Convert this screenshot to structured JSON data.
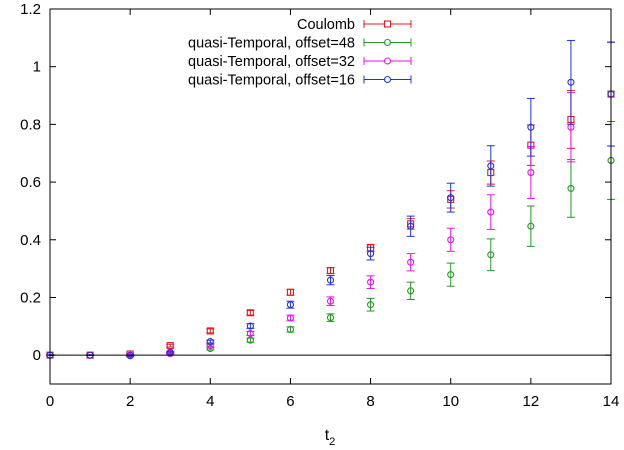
{
  "chart_data": {
    "type": "scatter",
    "title": "",
    "xlabel_base": "t",
    "xlabel_sub": "2",
    "ylabel": "",
    "xlim": [
      0,
      14
    ],
    "ylim": [
      -0.1,
      1.2
    ],
    "xticks": [
      0,
      2,
      4,
      6,
      8,
      10,
      12,
      14
    ],
    "yticks": [
      0,
      0.2,
      0.4,
      0.6,
      0.8,
      1,
      1.2
    ],
    "ytick_labels": [
      "0",
      "0.2",
      "0.4",
      "0.6",
      "0.8",
      "1",
      "1.2"
    ],
    "zero_line": true,
    "grid": false,
    "legend_position": "top-right",
    "series": [
      {
        "name": "Coulomb",
        "color": "#e41a1c",
        "marker": "square",
        "x": [
          0,
          1,
          2,
          3,
          4,
          5,
          6,
          7,
          8,
          9,
          10,
          11,
          12,
          13,
          14
        ],
        "y": [
          0,
          0,
          0.004,
          0.033,
          0.084,
          0.147,
          0.218,
          0.293,
          0.372,
          0.455,
          0.54,
          0.633,
          0.728,
          0.817,
          0.905
        ],
        "err": [
          0.001,
          0.001,
          0.003,
          0.005,
          0.007,
          0.008,
          0.01,
          0.01,
          0.012,
          0.018,
          0.03,
          0.04,
          0.07,
          0.1,
          0.18
        ]
      },
      {
        "name": "quasi-Temporal, offset=48",
        "color": "#229922",
        "marker": "circle",
        "x": [
          0,
          1,
          2,
          3,
          4,
          5,
          6,
          7,
          8,
          9,
          10,
          11,
          12,
          13,
          14
        ],
        "y": [
          0,
          0,
          0,
          0.005,
          0.023,
          0.052,
          0.089,
          0.13,
          0.175,
          0.223,
          0.279,
          0.348,
          0.447,
          0.578,
          0.675
        ],
        "err": [
          0.001,
          0.001,
          0.002,
          0.003,
          0.005,
          0.007,
          0.009,
          0.013,
          0.022,
          0.03,
          0.04,
          0.055,
          0.07,
          0.1,
          0.135
        ]
      },
      {
        "name": "quasi-Temporal, offset=32",
        "color": "#ee11ee",
        "marker": "circle",
        "x": [
          0,
          1,
          2,
          3,
          4,
          5,
          6,
          7,
          8,
          9,
          10,
          11,
          12,
          13,
          14
        ],
        "y": [
          0,
          0,
          0,
          0.006,
          0.033,
          0.075,
          0.129,
          0.187,
          0.253,
          0.322,
          0.4,
          0.496,
          0.633,
          0.79,
          0.905
        ],
        "err": [
          0.001,
          0.001,
          0.002,
          0.003,
          0.005,
          0.007,
          0.01,
          0.015,
          0.022,
          0.03,
          0.04,
          0.06,
          0.09,
          0.12,
          0.18
        ]
      },
      {
        "name": "quasi-Temporal, offset=16",
        "color": "#1f33dd",
        "marker": "circle",
        "x": [
          0,
          1,
          2,
          3,
          4,
          5,
          6,
          7,
          8,
          9,
          10,
          11,
          12,
          13,
          14
        ],
        "y": [
          0,
          0,
          -0.002,
          0.01,
          0.047,
          0.101,
          0.175,
          0.26,
          0.352,
          0.447,
          0.546,
          0.656,
          0.79,
          0.946,
          0.905
        ],
        "err": [
          0.001,
          0.001,
          0.002,
          0.003,
          0.005,
          0.008,
          0.012,
          0.016,
          0.022,
          0.035,
          0.05,
          0.07,
          0.1,
          0.145,
          0.18
        ]
      }
    ]
  }
}
